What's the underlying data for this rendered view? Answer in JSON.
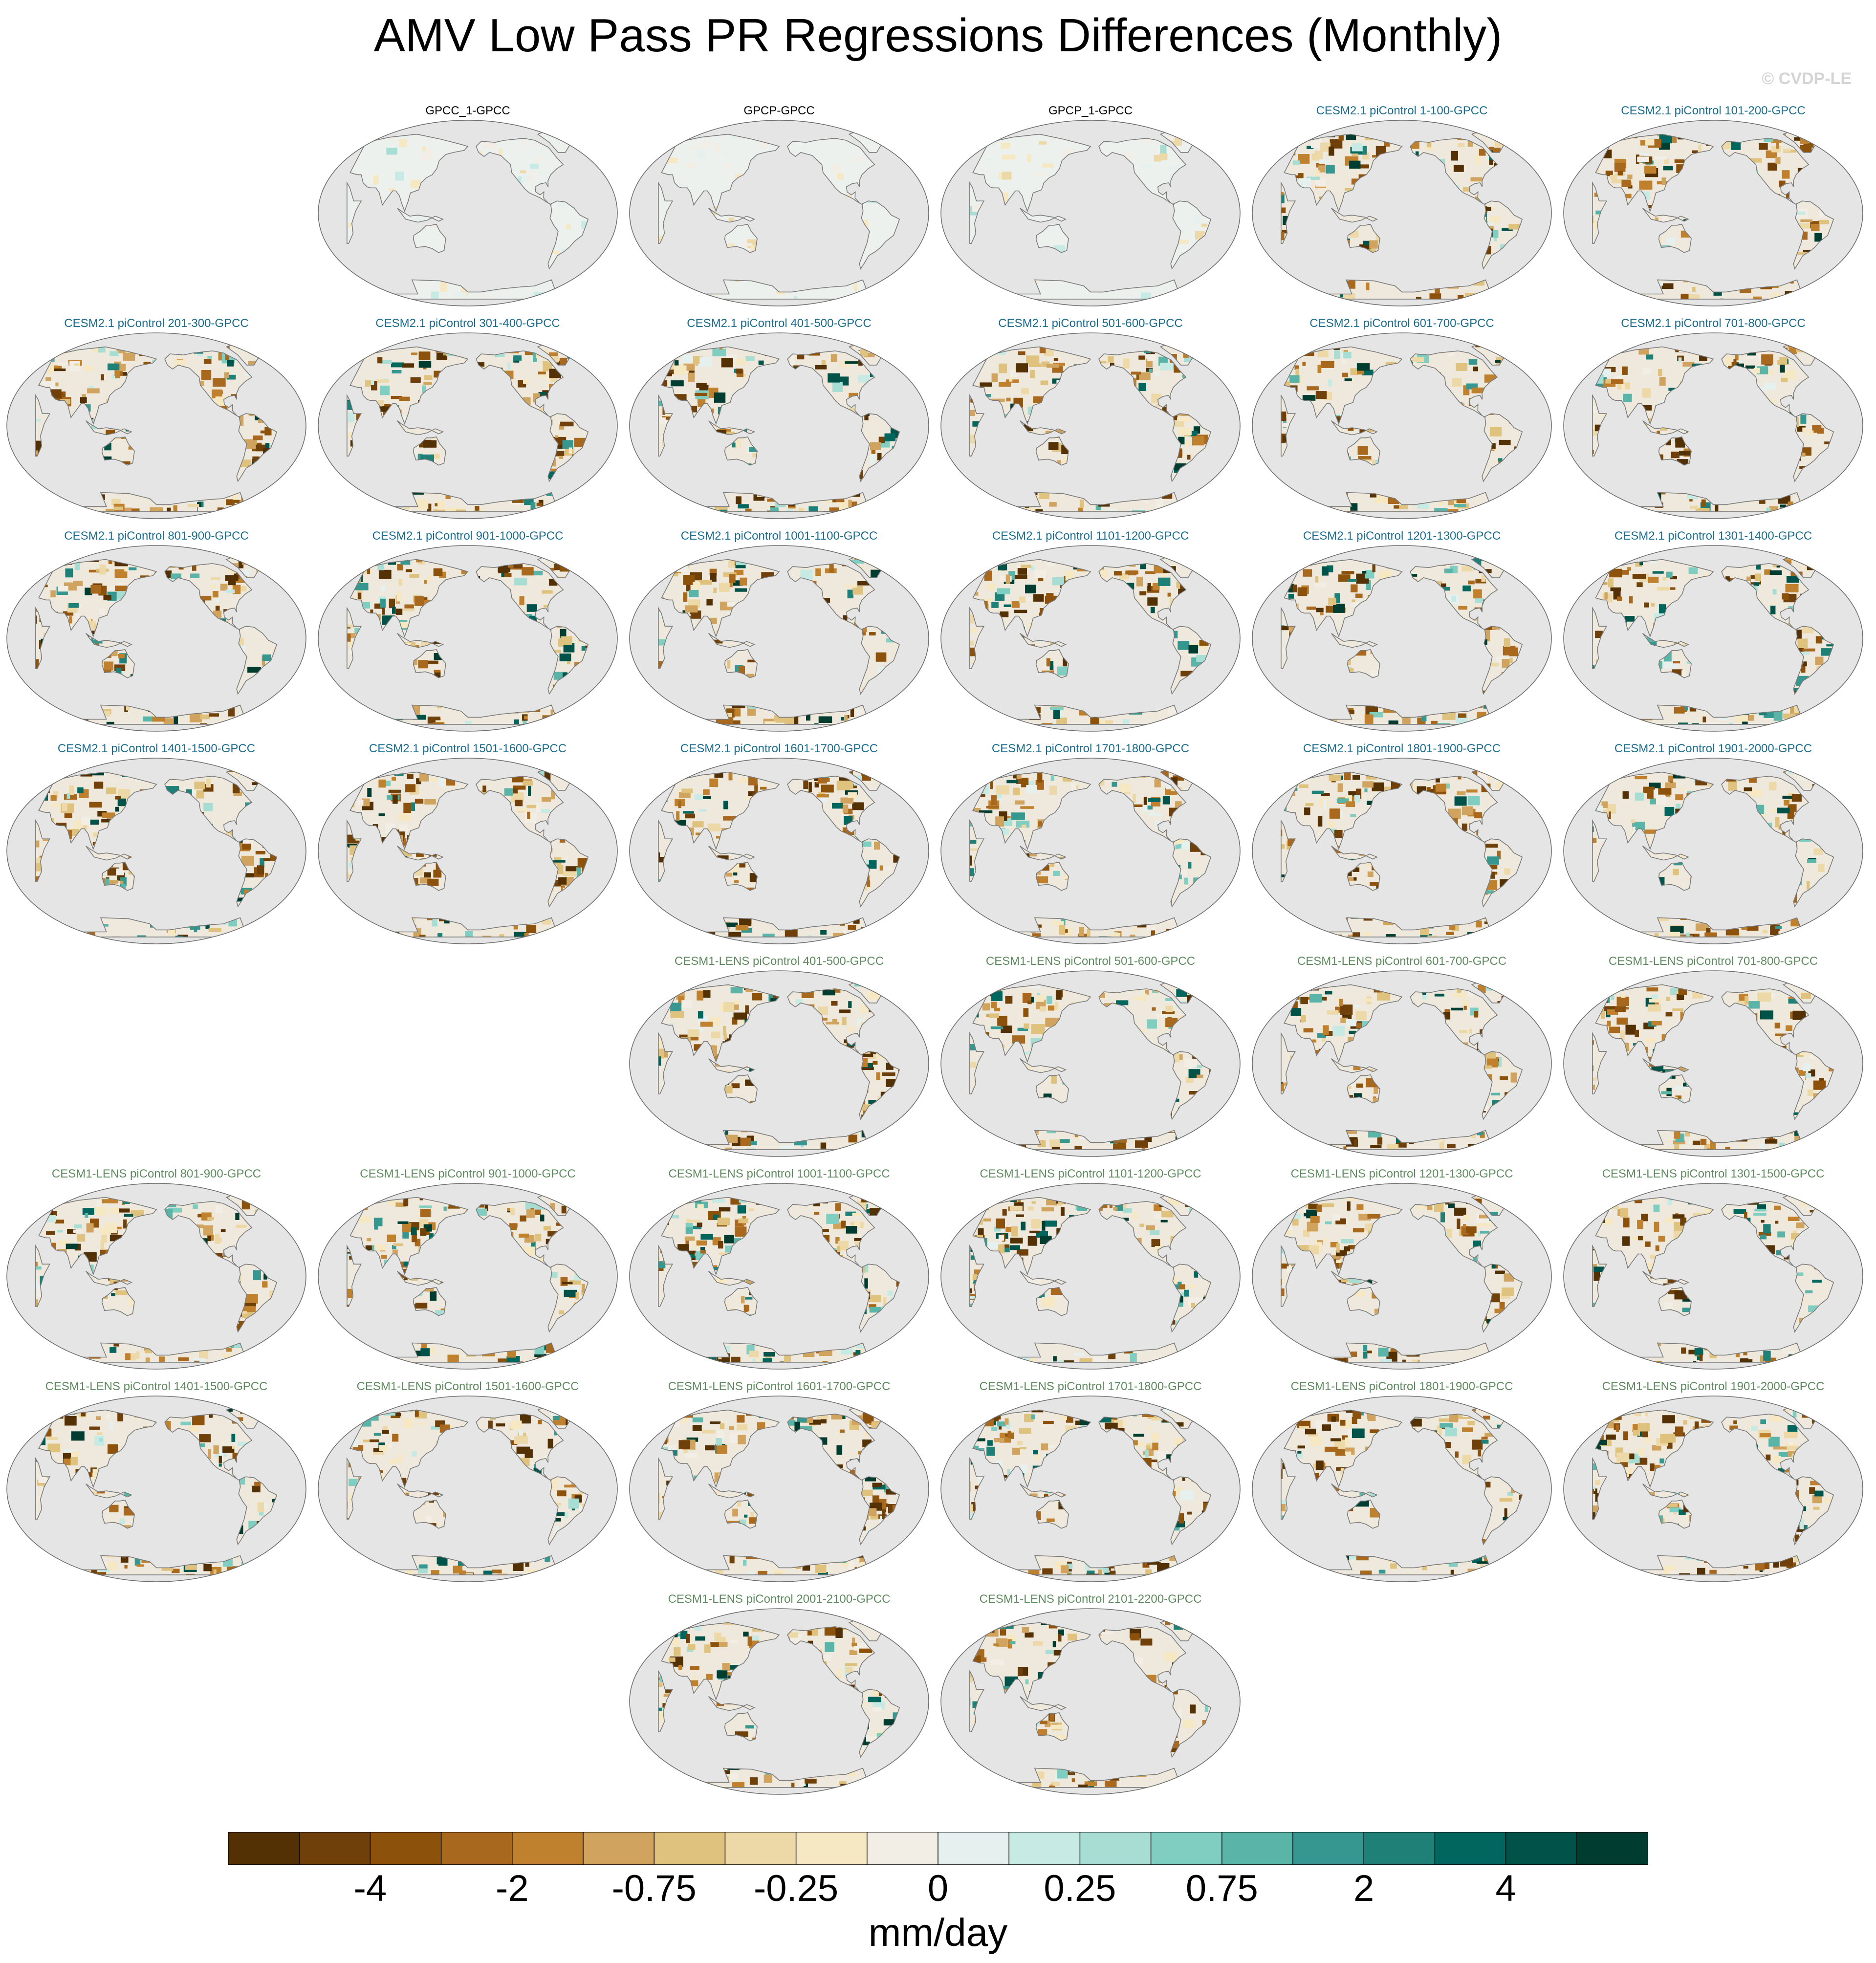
{
  "title": "AMV Low Pass PR Regressions Differences (Monthly)",
  "watermark": "© CVDP-LE",
  "panels": [
    {
      "label": "GPCC_1-GPCC",
      "group": "obs",
      "row": 0,
      "col": 1
    },
    {
      "label": "GPCP-GPCC",
      "group": "obs",
      "row": 0,
      "col": 2
    },
    {
      "label": "GPCP_1-GPCC",
      "group": "obs",
      "row": 0,
      "col": 3
    },
    {
      "label": "CESM2.1 piControl 1-100-GPCC",
      "group": "cesm2",
      "row": 0,
      "col": 4
    },
    {
      "label": "CESM2.1 piControl 101-200-GPCC",
      "group": "cesm2",
      "row": 0,
      "col": 5
    },
    {
      "label": "CESM2.1 piControl 201-300-GPCC",
      "group": "cesm2",
      "row": 1,
      "col": 0
    },
    {
      "label": "CESM2.1 piControl 301-400-GPCC",
      "group": "cesm2",
      "row": 1,
      "col": 1
    },
    {
      "label": "CESM2.1 piControl 401-500-GPCC",
      "group": "cesm2",
      "row": 1,
      "col": 2
    },
    {
      "label": "CESM2.1 piControl 501-600-GPCC",
      "group": "cesm2",
      "row": 1,
      "col": 3
    },
    {
      "label": "CESM2.1 piControl 601-700-GPCC",
      "group": "cesm2",
      "row": 1,
      "col": 4
    },
    {
      "label": "CESM2.1 piControl 701-800-GPCC",
      "group": "cesm2",
      "row": 1,
      "col": 5
    },
    {
      "label": "CESM2.1 piControl 801-900-GPCC",
      "group": "cesm2",
      "row": 2,
      "col": 0
    },
    {
      "label": "CESM2.1 piControl 901-1000-GPCC",
      "group": "cesm2",
      "row": 2,
      "col": 1
    },
    {
      "label": "CESM2.1 piControl 1001-1100-GPCC",
      "group": "cesm2",
      "row": 2,
      "col": 2
    },
    {
      "label": "CESM2.1 piControl 1101-1200-GPCC",
      "group": "cesm2",
      "row": 2,
      "col": 3
    },
    {
      "label": "CESM2.1 piControl 1201-1300-GPCC",
      "group": "cesm2",
      "row": 2,
      "col": 4
    },
    {
      "label": "CESM2.1 piControl 1301-1400-GPCC",
      "group": "cesm2",
      "row": 2,
      "col": 5
    },
    {
      "label": "CESM2.1 piControl 1401-1500-GPCC",
      "group": "cesm2",
      "row": 3,
      "col": 0
    },
    {
      "label": "CESM2.1 piControl 1501-1600-GPCC",
      "group": "cesm2",
      "row": 3,
      "col": 1
    },
    {
      "label": "CESM2.1 piControl 1601-1700-GPCC",
      "group": "cesm2",
      "row": 3,
      "col": 2
    },
    {
      "label": "CESM2.1 piControl 1701-1800-GPCC",
      "group": "cesm2",
      "row": 3,
      "col": 3
    },
    {
      "label": "CESM2.1 piControl 1801-1900-GPCC",
      "group": "cesm2",
      "row": 3,
      "col": 4
    },
    {
      "label": "CESM2.1 piControl 1901-2000-GPCC",
      "group": "cesm2",
      "row": 3,
      "col": 5
    },
    {
      "label": "CESM1-LENS piControl 401-500-GPCC",
      "group": "cesm1",
      "row": 4,
      "col": 2
    },
    {
      "label": "CESM1-LENS piControl 501-600-GPCC",
      "group": "cesm1",
      "row": 4,
      "col": 3
    },
    {
      "label": "CESM1-LENS piControl 601-700-GPCC",
      "group": "cesm1",
      "row": 4,
      "col": 4
    },
    {
      "label": "CESM1-LENS piControl 701-800-GPCC",
      "group": "cesm1",
      "row": 4,
      "col": 5
    },
    {
      "label": "CESM1-LENS piControl 801-900-GPCC",
      "group": "cesm1",
      "row": 5,
      "col": 0
    },
    {
      "label": "CESM1-LENS piControl 901-1000-GPCC",
      "group": "cesm1",
      "row": 5,
      "col": 1
    },
    {
      "label": "CESM1-LENS piControl 1001-1100-GPCC",
      "group": "cesm1",
      "row": 5,
      "col": 2
    },
    {
      "label": "CESM1-LENS piControl 1101-1200-GPCC",
      "group": "cesm1",
      "row": 5,
      "col": 3
    },
    {
      "label": "CESM1-LENS piControl 1201-1300-GPCC",
      "group": "cesm1",
      "row": 5,
      "col": 4
    },
    {
      "label": "CESM1-LENS piControl 1301-1500-GPCC",
      "group": "cesm1",
      "row": 5,
      "col": 5
    },
    {
      "label": "CESM1-LENS piControl 1401-1500-GPCC",
      "group": "cesm1",
      "row": 6,
      "col": 0
    },
    {
      "label": "CESM1-LENS piControl 1501-1600-GPCC",
      "group": "cesm1",
      "row": 6,
      "col": 1
    },
    {
      "label": "CESM1-LENS piControl 1601-1700-GPCC",
      "group": "cesm1",
      "row": 6,
      "col": 2
    },
    {
      "label": "CESM1-LENS piControl 1701-1800-GPCC",
      "group": "cesm1",
      "row": 6,
      "col": 3
    },
    {
      "label": "CESM1-LENS piControl 1801-1900-GPCC",
      "group": "cesm1",
      "row": 6,
      "col": 4
    },
    {
      "label": "CESM1-LENS piControl 1901-2000-GPCC",
      "group": "cesm1",
      "row": 6,
      "col": 5
    },
    {
      "label": "CESM1-LENS piControl 2001-2100-GPCC",
      "group": "cesm1",
      "row": 7,
      "col": 2
    },
    {
      "label": "CESM1-LENS piControl 2101-2200-GPCC",
      "group": "cesm1",
      "row": 7,
      "col": 3
    }
  ],
  "label_colors": {
    "obs": "#000000",
    "cesm2": "#1b6c8c",
    "cesm1": "#5f8a5f"
  },
  "map_style": {
    "ocean": "#e5e5e5",
    "coast": "#7a7a7a",
    "border": "#6e6e6e"
  },
  "colorbar": {
    "units": "mm/day",
    "colors": [
      "#543005",
      "#6f4009",
      "#8c510a",
      "#a8691f",
      "#bf812d",
      "#d0a45e",
      "#dfc27d",
      "#edd9a8",
      "#f6e8c3",
      "#f2eee6",
      "#e6f0ee",
      "#c7eae5",
      "#a8ddd4",
      "#80cdc1",
      "#5ab4a8",
      "#35978f",
      "#1e8077",
      "#01665e",
      "#015249",
      "#003c30"
    ],
    "tick_labels": [
      "-4",
      "-2",
      "-0.75",
      "-0.25",
      "0",
      "0.25",
      "0.75",
      "2",
      "4"
    ]
  }
}
